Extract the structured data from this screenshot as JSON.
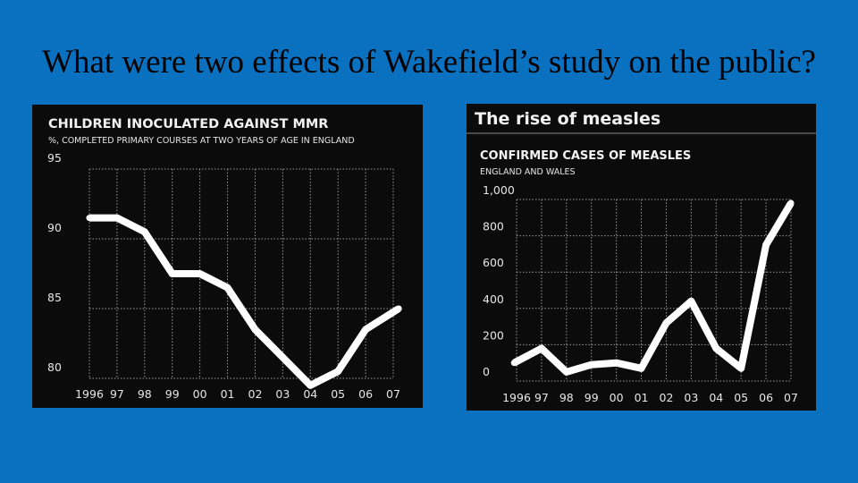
{
  "slide": {
    "title": "What were two effects of Wakefield’s study on the public?"
  },
  "colors": {
    "background": "#0a70c0",
    "panel": "#0b0b0b",
    "line": "#ffffff"
  },
  "chart_data": [
    {
      "type": "line",
      "title": "CHILDREN INOCULATED AGAINST MMR",
      "subtitle": "%, COMPLETED PRIMARY COURSES AT TWO YEARS OF AGE IN ENGLAND",
      "categories": [
        "1996",
        "97",
        "98",
        "99",
        "00",
        "01",
        "02",
        "03",
        "04",
        "05",
        "06",
        "07"
      ],
      "values": [
        91.5,
        91.5,
        90.5,
        87.5,
        87.5,
        86.5,
        83.5,
        81.5,
        79.5,
        80.5,
        83.5,
        85.0
      ],
      "x": [
        1996,
        1997,
        1998,
        1999,
        2000,
        2001,
        2002,
        2003,
        2004,
        2005,
        2006,
        2007
      ],
      "x_plot": [
        1996,
        1997,
        1998,
        1999,
        2000,
        2001,
        2002,
        2003,
        2004,
        2005,
        2006,
        2007.2
      ],
      "yticks": [
        95,
        90,
        85,
        80
      ],
      "ylim": [
        80,
        95
      ],
      "xlabel": "",
      "ylabel": "",
      "grid": true
    },
    {
      "type": "line",
      "banner_title": "The rise of measles",
      "title": "CONFIRMED CASES OF MEASLES",
      "subtitle": "ENGLAND AND WALES",
      "categories": [
        "1996",
        "97",
        "98",
        "99",
        "00",
        "01",
        "02",
        "03",
        "04",
        "05",
        "06",
        "07"
      ],
      "values": [
        100,
        180,
        50,
        90,
        100,
        70,
        320,
        440,
        180,
        70,
        750,
        980
      ],
      "x": [
        1996,
        1997,
        1998,
        1999,
        2000,
        2001,
        2002,
        2003,
        2004,
        2005,
        2006,
        2007
      ],
      "x_plot": [
        1995.9,
        1997,
        1998,
        1999,
        2000,
        2001,
        2002,
        2003,
        2004,
        2005,
        2006,
        2007
      ],
      "yticks": [
        "1,000",
        "800",
        "600",
        "400",
        "200",
        "0"
      ],
      "ytick_values": [
        1000,
        800,
        600,
        400,
        200,
        0
      ],
      "ylim": [
        0,
        1000
      ],
      "xlabel": "",
      "ylabel": "",
      "grid": true
    }
  ]
}
